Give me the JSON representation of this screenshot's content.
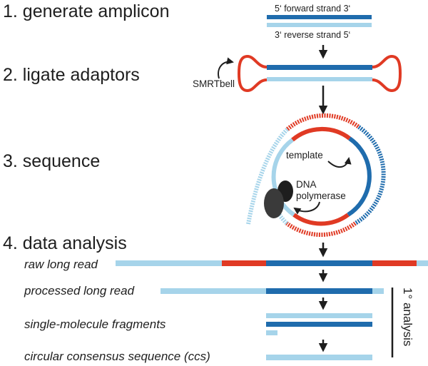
{
  "colors": {
    "dark_blue": "#1f6cad",
    "light_blue": "#a6d4ea",
    "red": "#e03a24",
    "ink": "#1e1e1e",
    "polymerase": "#3a3a3a"
  },
  "steps": [
    {
      "label": "1. generate amplicon"
    },
    {
      "label": "2. ligate adaptors"
    },
    {
      "label": "3. sequence"
    },
    {
      "label": "4. data analysis"
    }
  ],
  "amplicon": {
    "forward_label": "5‘  forward strand 3‘",
    "reverse_label": "3‘  reverse strand 5‘"
  },
  "adaptor": {
    "label": "SMRTbell"
  },
  "sequencing": {
    "template_label": "template",
    "polymerase_label_line1": "DNA",
    "polymerase_label_line2": "polymerase"
  },
  "analysis": {
    "rows": [
      {
        "label": "raw long read"
      },
      {
        "label": "processed long read"
      },
      {
        "label": "single-molecule fragments"
      },
      {
        "label": "circular consensus sequence (ccs)"
      }
    ],
    "bracket_label": "1° analysis"
  }
}
